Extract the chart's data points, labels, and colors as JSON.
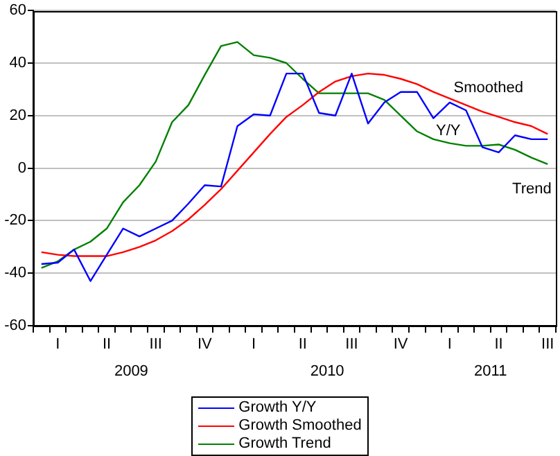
{
  "chart_data": {
    "type": "line",
    "categories": [
      null,
      "I",
      null,
      null,
      "II",
      null,
      null,
      "III",
      null,
      null,
      "IV",
      null,
      null,
      "I",
      null,
      null,
      "II",
      null,
      null,
      "III",
      null,
      null,
      "IV",
      null,
      null,
      "I",
      null,
      null,
      "II",
      null,
      null,
      "III"
    ],
    "series": [
      {
        "name": "Growth Y/Y",
        "color": "#0000ff",
        "values": [
          -36.5,
          -36,
          -31,
          -43,
          -33,
          -23,
          -26,
          -23,
          -20,
          -13.5,
          -6.5,
          -7,
          16,
          20.5,
          20,
          36,
          36,
          21,
          20,
          36,
          17,
          25,
          29,
          29,
          19,
          25,
          22,
          8,
          6,
          12.5,
          11,
          11
        ]
      },
      {
        "name": "Growth Smoothed",
        "color": "#ff0000",
        "values": [
          -32,
          -33,
          -33.5,
          -33.5,
          -33.5,
          -32,
          -30,
          -27.5,
          -24,
          -19.5,
          -14,
          -8,
          -1,
          6,
          13,
          19.5,
          24,
          29,
          33,
          35,
          36,
          35.5,
          34,
          32,
          29,
          26.5,
          24,
          21.5,
          19.5,
          17.5,
          16,
          13
        ]
      },
      {
        "name": "Growth Trend",
        "color": "#008000",
        "values": [
          -38,
          -35.5,
          -31,
          -28,
          -23,
          -13,
          -6.5,
          2.5,
          17.5,
          24,
          35.5,
          46.5,
          48,
          43,
          42,
          40,
          34,
          28.5,
          28.5,
          28.5,
          28.5,
          26,
          20,
          14,
          11,
          9.5,
          8.5,
          8.5,
          9,
          7,
          4,
          1.5
        ]
      }
    ],
    "ylim": [
      -60,
      60
    ],
    "yticks": [
      -60,
      -40,
      -20,
      0,
      20,
      40,
      60
    ],
    "grid": "y",
    "legend": "bottom",
    "marker": "none",
    "line_style": "solid",
    "annotations": [
      "Smoothed",
      "Y/Y",
      "Trend",
      "2009",
      "2010",
      "2011"
    ]
  }
}
